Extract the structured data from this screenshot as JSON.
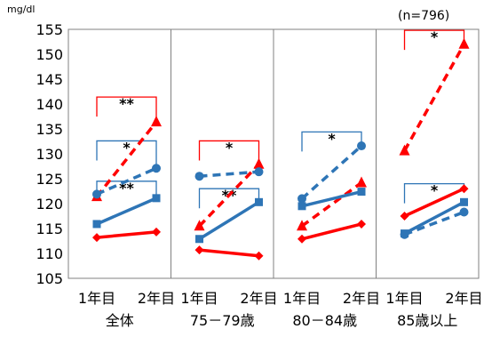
{
  "chart_data": {
    "type": "line",
    "unit": "mg/dl",
    "note": "(n=796)",
    "ylim": [
      105,
      155
    ],
    "yticks": [
      "155",
      "150",
      "145",
      "140",
      "135",
      "130",
      "125",
      "120",
      "115",
      "110",
      "105"
    ],
    "groups": [
      {
        "label": "全体",
        "x": [
          "1年目",
          "2年目"
        ]
      },
      {
        "label": "75－79歳",
        "x": [
          "1年目",
          "2年目"
        ]
      },
      {
        "label": "80－84歳",
        "x": [
          "1年目",
          "2年目"
        ]
      },
      {
        "label": "85歳以上",
        "x": [
          "1年目",
          "2年目"
        ]
      }
    ],
    "series": [
      {
        "color": "#ff0000",
        "style": "solid",
        "marker": "diamond",
        "values": [
          [
            113.2,
            114.3
          ],
          [
            110.7,
            109.5
          ],
          [
            112.9,
            115.9
          ],
          [
            117.5,
            123.0
          ]
        ]
      },
      {
        "color": "#ff0000",
        "style": "dashed",
        "marker": "triangle",
        "values": [
          [
            121.4,
            136.4
          ],
          [
            115.5,
            127.9
          ],
          [
            115.5,
            124.2
          ],
          [
            130.6,
            152.0
          ]
        ]
      },
      {
        "color": "#2e75b6",
        "style": "solid",
        "marker": "square",
        "values": [
          [
            115.9,
            121.1
          ],
          [
            112.9,
            120.3
          ],
          [
            119.5,
            122.4
          ],
          [
            114.0,
            120.3
          ]
        ]
      },
      {
        "color": "#2e75b6",
        "style": "dashed",
        "marker": "circle",
        "values": [
          [
            121.9,
            127.1
          ],
          [
            125.5,
            126.4
          ],
          [
            121.0,
            131.6
          ],
          [
            113.8,
            118.3
          ]
        ]
      }
    ],
    "significance": [
      {
        "group": 0,
        "y1": 141.4,
        "y2": 136.6,
        "color": "#ff0000",
        "label": "**"
      },
      {
        "group": 0,
        "y1": 132.6,
        "y2": 127.3,
        "color": "#2e75b6",
        "label": "*"
      },
      {
        "group": 0,
        "y1": 124.5,
        "y2": 121.3,
        "color": "#2e75b6",
        "label": "**"
      },
      {
        "group": 1,
        "y1": 132.6,
        "y2": 128.1,
        "color": "#ff0000",
        "label": "*"
      },
      {
        "group": 1,
        "y1": 123.0,
        "y2": 120.5,
        "color": "#2e75b6",
        "label": "**"
      },
      {
        "group": 2,
        "y1": 134.4,
        "y2": 131.9,
        "color": "#2e75b6",
        "label": "*"
      },
      {
        "group": 3,
        "y1": 154.8,
        "y2": 152.3,
        "color": "#ff0000",
        "label": "*"
      },
      {
        "group": 3,
        "y1": 124.0,
        "y2": 123.1,
        "color": "#2e75b6",
        "label": "*"
      }
    ]
  }
}
